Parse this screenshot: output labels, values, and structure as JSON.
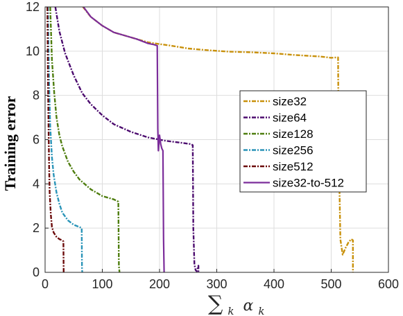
{
  "chart_data": {
    "type": "line",
    "xlabel": "∑k αk",
    "xlabel_main": "∑",
    "xlabel_sub": "k",
    "xlabel_alpha": "α",
    "ylabel": "Training error",
    "xlim": [
      0,
      600
    ],
    "ylim": [
      0,
      12
    ],
    "xticks": [
      0,
      100,
      200,
      300,
      400,
      500,
      600
    ],
    "yticks": [
      0,
      2,
      4,
      6,
      8,
      10,
      12
    ],
    "grid": true,
    "legend_position": "right-middle",
    "series": [
      {
        "name": "size32",
        "color": "#C8900A",
        "dash": "dashdot",
        "x": [
          66,
          80,
          100,
          120,
          140,
          160,
          180,
          200,
          220,
          250,
          280,
          320,
          360,
          400,
          440,
          480,
          500,
          512,
          513,
          516,
          520,
          525,
          530,
          535,
          538,
          538
        ],
        "y": [
          12.0,
          11.55,
          11.15,
          10.85,
          10.7,
          10.55,
          10.4,
          10.32,
          10.25,
          10.12,
          10.05,
          9.98,
          9.95,
          9.9,
          9.82,
          9.76,
          9.7,
          9.72,
          6.0,
          1.5,
          0.8,
          1.1,
          1.35,
          1.5,
          1.45,
          0.0
        ]
      },
      {
        "name": "size64",
        "color": "#4B0A6E",
        "dash": "dashdot",
        "x": [
          18,
          25,
          35,
          50,
          65,
          80,
          100,
          120,
          150,
          180,
          210,
          240,
          255,
          258,
          259,
          261,
          263,
          265,
          268,
          268
        ],
        "y": [
          12.0,
          10.9,
          9.9,
          8.9,
          8.1,
          7.6,
          7.1,
          6.7,
          6.35,
          6.1,
          5.95,
          5.85,
          5.8,
          5.75,
          2.0,
          0.35,
          0.1,
          0.05,
          0.3,
          0.0
        ]
      },
      {
        "name": "size128",
        "color": "#4E7D0E",
        "dash": "dashdot",
        "x": [
          9,
          12,
          16,
          20,
          25,
          30,
          40,
          50,
          60,
          80,
          100,
          120,
          128,
          129,
          130,
          131
        ],
        "y": [
          12.0,
          9.6,
          8.1,
          7.0,
          6.2,
          5.7,
          5.0,
          4.55,
          4.2,
          3.75,
          3.45,
          3.3,
          3.2,
          0.3,
          0.0,
          0.0
        ]
      },
      {
        "name": "size256",
        "color": "#2A94B8",
        "dash": "dashdot",
        "x": [
          5,
          7,
          9,
          12,
          15,
          20,
          25,
          30,
          40,
          50,
          60,
          64,
          64.5,
          65
        ],
        "y": [
          12.0,
          8.5,
          6.6,
          5.2,
          4.4,
          3.6,
          3.1,
          2.7,
          2.35,
          2.15,
          2.05,
          2.0,
          0.2,
          0.0
        ]
      },
      {
        "name": "size512",
        "color": "#6B0A0A",
        "dash": "dashdot",
        "x": [
          4,
          5,
          6,
          7,
          8,
          10,
          12,
          15,
          20,
          25,
          30,
          32,
          32.5
        ],
        "y": [
          12.0,
          8.8,
          6.5,
          4.8,
          3.6,
          2.6,
          2.05,
          1.8,
          1.6,
          1.5,
          1.45,
          1.4,
          0.0
        ]
      },
      {
        "name": "size32-to-512",
        "color": "#7B2C9A",
        "dash": "solid",
        "x": [
          67,
          80,
          100,
          120,
          140,
          160,
          180,
          190,
          196,
          197,
          198,
          199,
          200,
          202,
          204,
          206,
          207,
          208,
          208
        ],
        "y": [
          12.0,
          11.55,
          11.15,
          10.85,
          10.7,
          10.55,
          10.35,
          10.3,
          10.25,
          6.5,
          5.5,
          5.9,
          6.2,
          5.8,
          5.6,
          5.5,
          1.5,
          0.0,
          0.0
        ]
      }
    ]
  }
}
